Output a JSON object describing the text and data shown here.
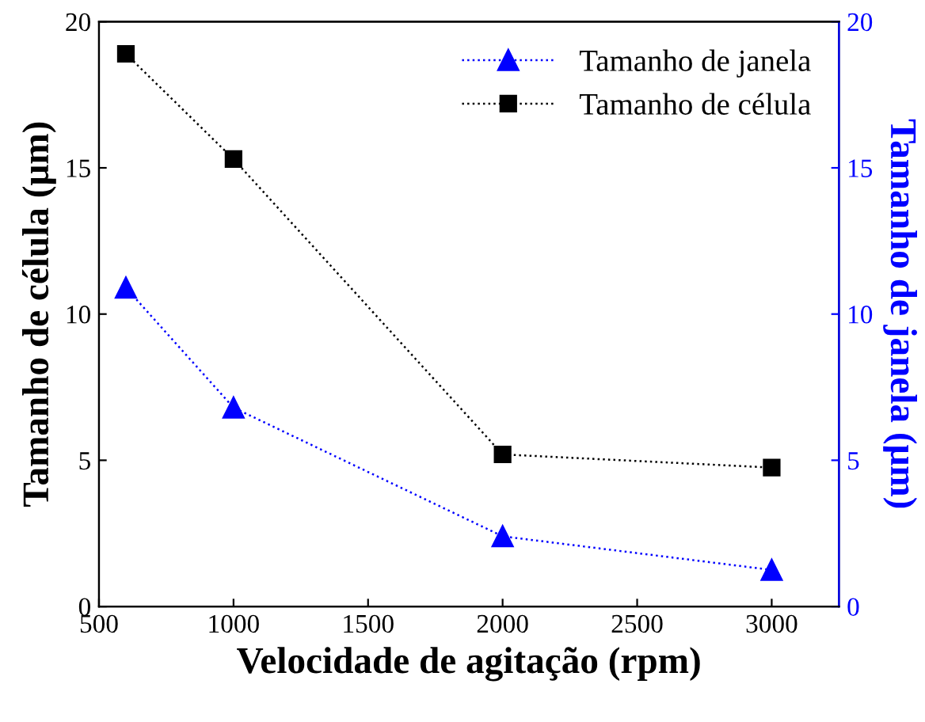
{
  "chart_data": {
    "type": "line",
    "xlabel": "Velocidade de agitação (rpm)",
    "ylabel": "Tamanho de célula (μm)",
    "y2label": "Tamanho de janela (μm)",
    "xlim": [
      500,
      3250
    ],
    "xticks": [
      500,
      1000,
      1500,
      2000,
      2500,
      3000
    ],
    "ylim": [
      0,
      20
    ],
    "yticks": [
      0,
      5,
      10,
      15,
      20
    ],
    "y2lim": [
      0,
      20
    ],
    "y2ticks": [
      0,
      5,
      10,
      15,
      20
    ],
    "legend": "top right",
    "line_style": "dotted",
    "grid": false,
    "series": [
      {
        "name": "Tamanho de janela",
        "color": "#0000ff",
        "axis": "y2",
        "marker": "triangle",
        "x": [
          600,
          1000,
          2000,
          3000
        ],
        "values": [
          10.9,
          6.8,
          2.4,
          1.25
        ]
      },
      {
        "name": "Tamanho de célula",
        "color": "#000000",
        "marker": "square",
        "x": [
          600,
          1000,
          2000,
          3000
        ],
        "values": [
          18.9,
          15.3,
          5.2,
          4.75
        ]
      }
    ]
  }
}
